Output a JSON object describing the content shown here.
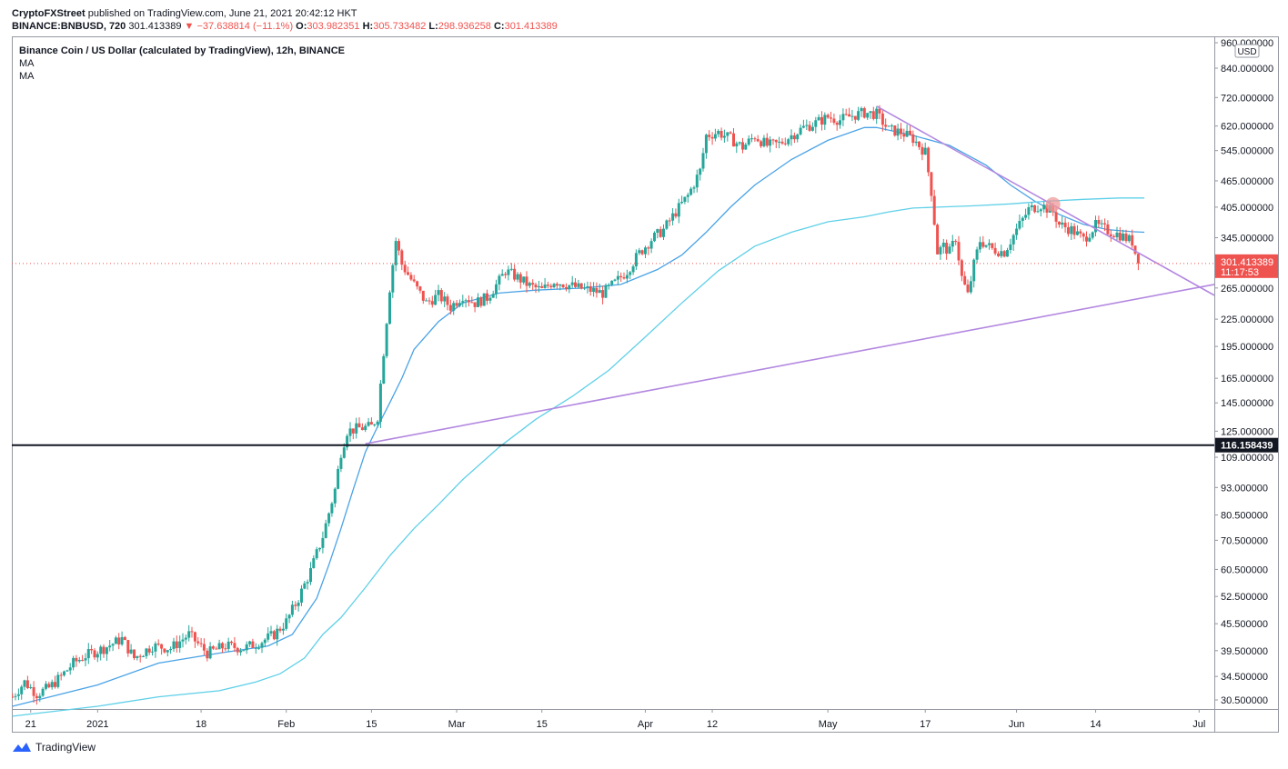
{
  "header": {
    "publisher": "CryptoFXStreet",
    "published_text": "published on TradingView.com, June 21, 2021 20:42:12 HKT",
    "symbol": "BINANCE:BNBUSD, 720",
    "last": "301.413389",
    "change_arrow": "▼",
    "change": "−37.638814 (−11.1%)",
    "o_label": "O:",
    "o_value": "303.982351",
    "h_label": "H:",
    "h_value": "305.733482",
    "l_label": "L:",
    "l_value": "298.936258",
    "c_label": "C:",
    "c_value": "301.413389"
  },
  "legend": {
    "title": "Binance Coin / US Dollar (calculated by TradingView), 12h, BINANCE",
    "ma1": "MA",
    "ma2": "MA"
  },
  "footer": {
    "brand": "TradingView"
  },
  "colors": {
    "up": "#26a69a",
    "down": "#ef5350",
    "ma_fast": "#4aa3e6",
    "ma_slow": "#5fd0e8",
    "trendline": "#b388e0",
    "support": "#131722",
    "price_label": "#ef5350"
  },
  "chart_data": {
    "type": "candlestick",
    "scale": "log",
    "ylim": [
      29.5,
      960
    ],
    "currency_badge": "USD",
    "y_ticks": [
      {
        "v": 960,
        "label": "960.000000"
      },
      {
        "v": 840,
        "label": "840.000000"
      },
      {
        "v": 720,
        "label": "720.000000"
      },
      {
        "v": 620,
        "label": "620.000000"
      },
      {
        "v": 545,
        "label": "545.000000"
      },
      {
        "v": 465,
        "label": "465.000000"
      },
      {
        "v": 405,
        "label": "405.000000"
      },
      {
        "v": 345,
        "label": "345.000000"
      },
      {
        "v": 265,
        "label": "265.000000"
      },
      {
        "v": 225,
        "label": "225.000000"
      },
      {
        "v": 195,
        "label": "195.000000"
      },
      {
        "v": 165,
        "label": "165.000000"
      },
      {
        "v": 145,
        "label": "145.000000"
      },
      {
        "v": 125,
        "label": "125.000000"
      },
      {
        "v": 109,
        "label": "109.000000"
      },
      {
        "v": 93,
        "label": "93.000000"
      },
      {
        "v": 80.5,
        "label": "80.500000"
      },
      {
        "v": 70.5,
        "label": "70.500000"
      },
      {
        "v": 60.5,
        "label": "60.500000"
      },
      {
        "v": 52.5,
        "label": "52.500000"
      },
      {
        "v": 45.5,
        "label": "45.500000"
      },
      {
        "v": 39.5,
        "label": "39.500000"
      },
      {
        "v": 34.5,
        "label": "34.500000"
      },
      {
        "v": 30.5,
        "label": "30.500000"
      }
    ],
    "x_ticks": [
      {
        "day": -11,
        "label": "21"
      },
      {
        "day": 0,
        "label": "2021"
      },
      {
        "day": 17,
        "label": "18"
      },
      {
        "day": 31,
        "label": "Feb"
      },
      {
        "day": 45,
        "label": "15"
      },
      {
        "day": 59,
        "label": "Mar"
      },
      {
        "day": 73,
        "label": "15"
      },
      {
        "day": 90,
        "label": "Apr"
      },
      {
        "day": 101,
        "label": "12"
      },
      {
        "day": 120,
        "label": "May"
      },
      {
        "day": 136,
        "label": "17"
      },
      {
        "day": 151,
        "label": "Jun"
      },
      {
        "day": 164,
        "label": "14"
      },
      {
        "day": 181,
        "label": "Jul"
      }
    ],
    "x_range_days": [
      -14.1,
      183.5
    ],
    "last_price": {
      "value": 301.413389,
      "label": "301.413389",
      "countdown": "11:17:53"
    },
    "support": {
      "value": 116.158439,
      "label": "116.158439"
    },
    "trendlines": [
      {
        "name": "upper",
        "from": {
          "day": 128,
          "price": 688
        },
        "to": {
          "day": 183.5,
          "price": 255
        }
      },
      {
        "name": "lower",
        "from": {
          "day": 44,
          "price": 117
        },
        "to": {
          "day": 183.5,
          "price": 270
        }
      }
    ],
    "breakout_marker": {
      "day": 157,
      "price": 411
    },
    "price_path": [
      [
        -14,
        31
      ],
      [
        -12,
        33.5
      ],
      [
        -10,
        31.5
      ],
      [
        -8,
        32.5
      ],
      [
        -6,
        34.5
      ],
      [
        -4,
        37
      ],
      [
        -2,
        38.5
      ],
      [
        1,
        40
      ],
      [
        4,
        42
      ],
      [
        6,
        38
      ],
      [
        9,
        40.5
      ],
      [
        12,
        40
      ],
      [
        15,
        43
      ],
      [
        18,
        39
      ],
      [
        21,
        40.5
      ],
      [
        24,
        40
      ],
      [
        27,
        41.5
      ],
      [
        29,
        43
      ],
      [
        31,
        46
      ],
      [
        33,
        52
      ],
      [
        35,
        60
      ],
      [
        37,
        72
      ],
      [
        39,
        92
      ],
      [
        40,
        112
      ],
      [
        41,
        125
      ],
      [
        43,
        127
      ],
      [
        45,
        128
      ],
      [
        46,
        135
      ],
      [
        47,
        190
      ],
      [
        48,
        265
      ],
      [
        49,
        340
      ],
      [
        50,
        300
      ],
      [
        52,
        270
      ],
      [
        54,
        245
      ],
      [
        56,
        255
      ],
      [
        58,
        240
      ],
      [
        60,
        255
      ],
      [
        62,
        245
      ],
      [
        64,
        252
      ],
      [
        66,
        275
      ],
      [
        67,
        290
      ],
      [
        69,
        280
      ],
      [
        71,
        268
      ],
      [
        73,
        262
      ],
      [
        75,
        275
      ],
      [
        77,
        270
      ],
      [
        79,
        265
      ],
      [
        81,
        262
      ],
      [
        83,
        258
      ],
      [
        85,
        272
      ],
      [
        87,
        290
      ],
      [
        89,
        318
      ],
      [
        91,
        342
      ],
      [
        93,
        360
      ],
      [
        95,
        395
      ],
      [
        97,
        430
      ],
      [
        99,
        490
      ],
      [
        100,
        590
      ],
      [
        102,
        600
      ],
      [
        104,
        580
      ],
      [
        106,
        555
      ],
      [
        108,
        588
      ],
      [
        110,
        560
      ],
      [
        112,
        565
      ],
      [
        114,
        590
      ],
      [
        116,
        615
      ],
      [
        118,
        630
      ],
      [
        120,
        650
      ],
      [
        122,
        640
      ],
      [
        124,
        655
      ],
      [
        126,
        665
      ],
      [
        128,
        660
      ],
      [
        130,
        608
      ],
      [
        132,
        600
      ],
      [
        134,
        580
      ],
      [
        136,
        540
      ],
      [
        137,
        440
      ],
      [
        138,
        320
      ],
      [
        139,
        330
      ],
      [
        140,
        320
      ],
      [
        141,
        345
      ],
      [
        142,
        280
      ],
      [
        143,
        255
      ],
      [
        144,
        300
      ],
      [
        145,
        340
      ],
      [
        147,
        325
      ],
      [
        149,
        320
      ],
      [
        151,
        360
      ],
      [
        153,
        400
      ],
      [
        155,
        410
      ],
      [
        157,
        395
      ],
      [
        158,
        370
      ],
      [
        160,
        360
      ],
      [
        162,
        342
      ],
      [
        164,
        368
      ],
      [
        166,
        358
      ],
      [
        168,
        350
      ],
      [
        170,
        338
      ],
      [
        171,
        301.4
      ]
    ],
    "ma_fast": [
      [
        -14,
        29.5
      ],
      [
        0,
        33
      ],
      [
        10,
        37
      ],
      [
        20,
        39
      ],
      [
        28,
        40.5
      ],
      [
        32,
        43
      ],
      [
        36,
        52
      ],
      [
        38,
        62
      ],
      [
        40,
        75
      ],
      [
        42,
        92
      ],
      [
        44,
        112
      ],
      [
        46,
        128
      ],
      [
        48,
        145
      ],
      [
        50,
        165
      ],
      [
        52,
        192
      ],
      [
        56,
        222
      ],
      [
        60,
        245
      ],
      [
        66,
        258
      ],
      [
        72,
        262
      ],
      [
        80,
        265
      ],
      [
        86,
        270
      ],
      [
        92,
        292
      ],
      [
        96,
        315
      ],
      [
        100,
        355
      ],
      [
        104,
        405
      ],
      [
        108,
        455
      ],
      [
        114,
        520
      ],
      [
        120,
        575
      ],
      [
        126,
        615
      ],
      [
        128,
        615
      ],
      [
        134,
        590
      ],
      [
        140,
        560
      ],
      [
        146,
        505
      ],
      [
        150,
        455
      ],
      [
        154,
        418
      ],
      [
        158,
        390
      ],
      [
        162,
        370
      ],
      [
        166,
        360
      ],
      [
        170,
        356
      ],
      [
        172,
        355
      ]
    ],
    "ma_slow": [
      [
        -14,
        28
      ],
      [
        0,
        29.5
      ],
      [
        10,
        31
      ],
      [
        20,
        32
      ],
      [
        26,
        33.5
      ],
      [
        30,
        35
      ],
      [
        34,
        38
      ],
      [
        37,
        43
      ],
      [
        40,
        47
      ],
      [
        44,
        55
      ],
      [
        48,
        65
      ],
      [
        52,
        75
      ],
      [
        56,
        85
      ],
      [
        60,
        97
      ],
      [
        66,
        115
      ],
      [
        72,
        133
      ],
      [
        78,
        150
      ],
      [
        84,
        172
      ],
      [
        90,
        205
      ],
      [
        96,
        245
      ],
      [
        102,
        290
      ],
      [
        108,
        330
      ],
      [
        114,
        355
      ],
      [
        120,
        375
      ],
      [
        126,
        385
      ],
      [
        130,
        395
      ],
      [
        134,
        403
      ],
      [
        138,
        405
      ],
      [
        144,
        408
      ],
      [
        150,
        412
      ],
      [
        156,
        418
      ],
      [
        162,
        422
      ],
      [
        168,
        425
      ],
      [
        172,
        425
      ]
    ]
  }
}
